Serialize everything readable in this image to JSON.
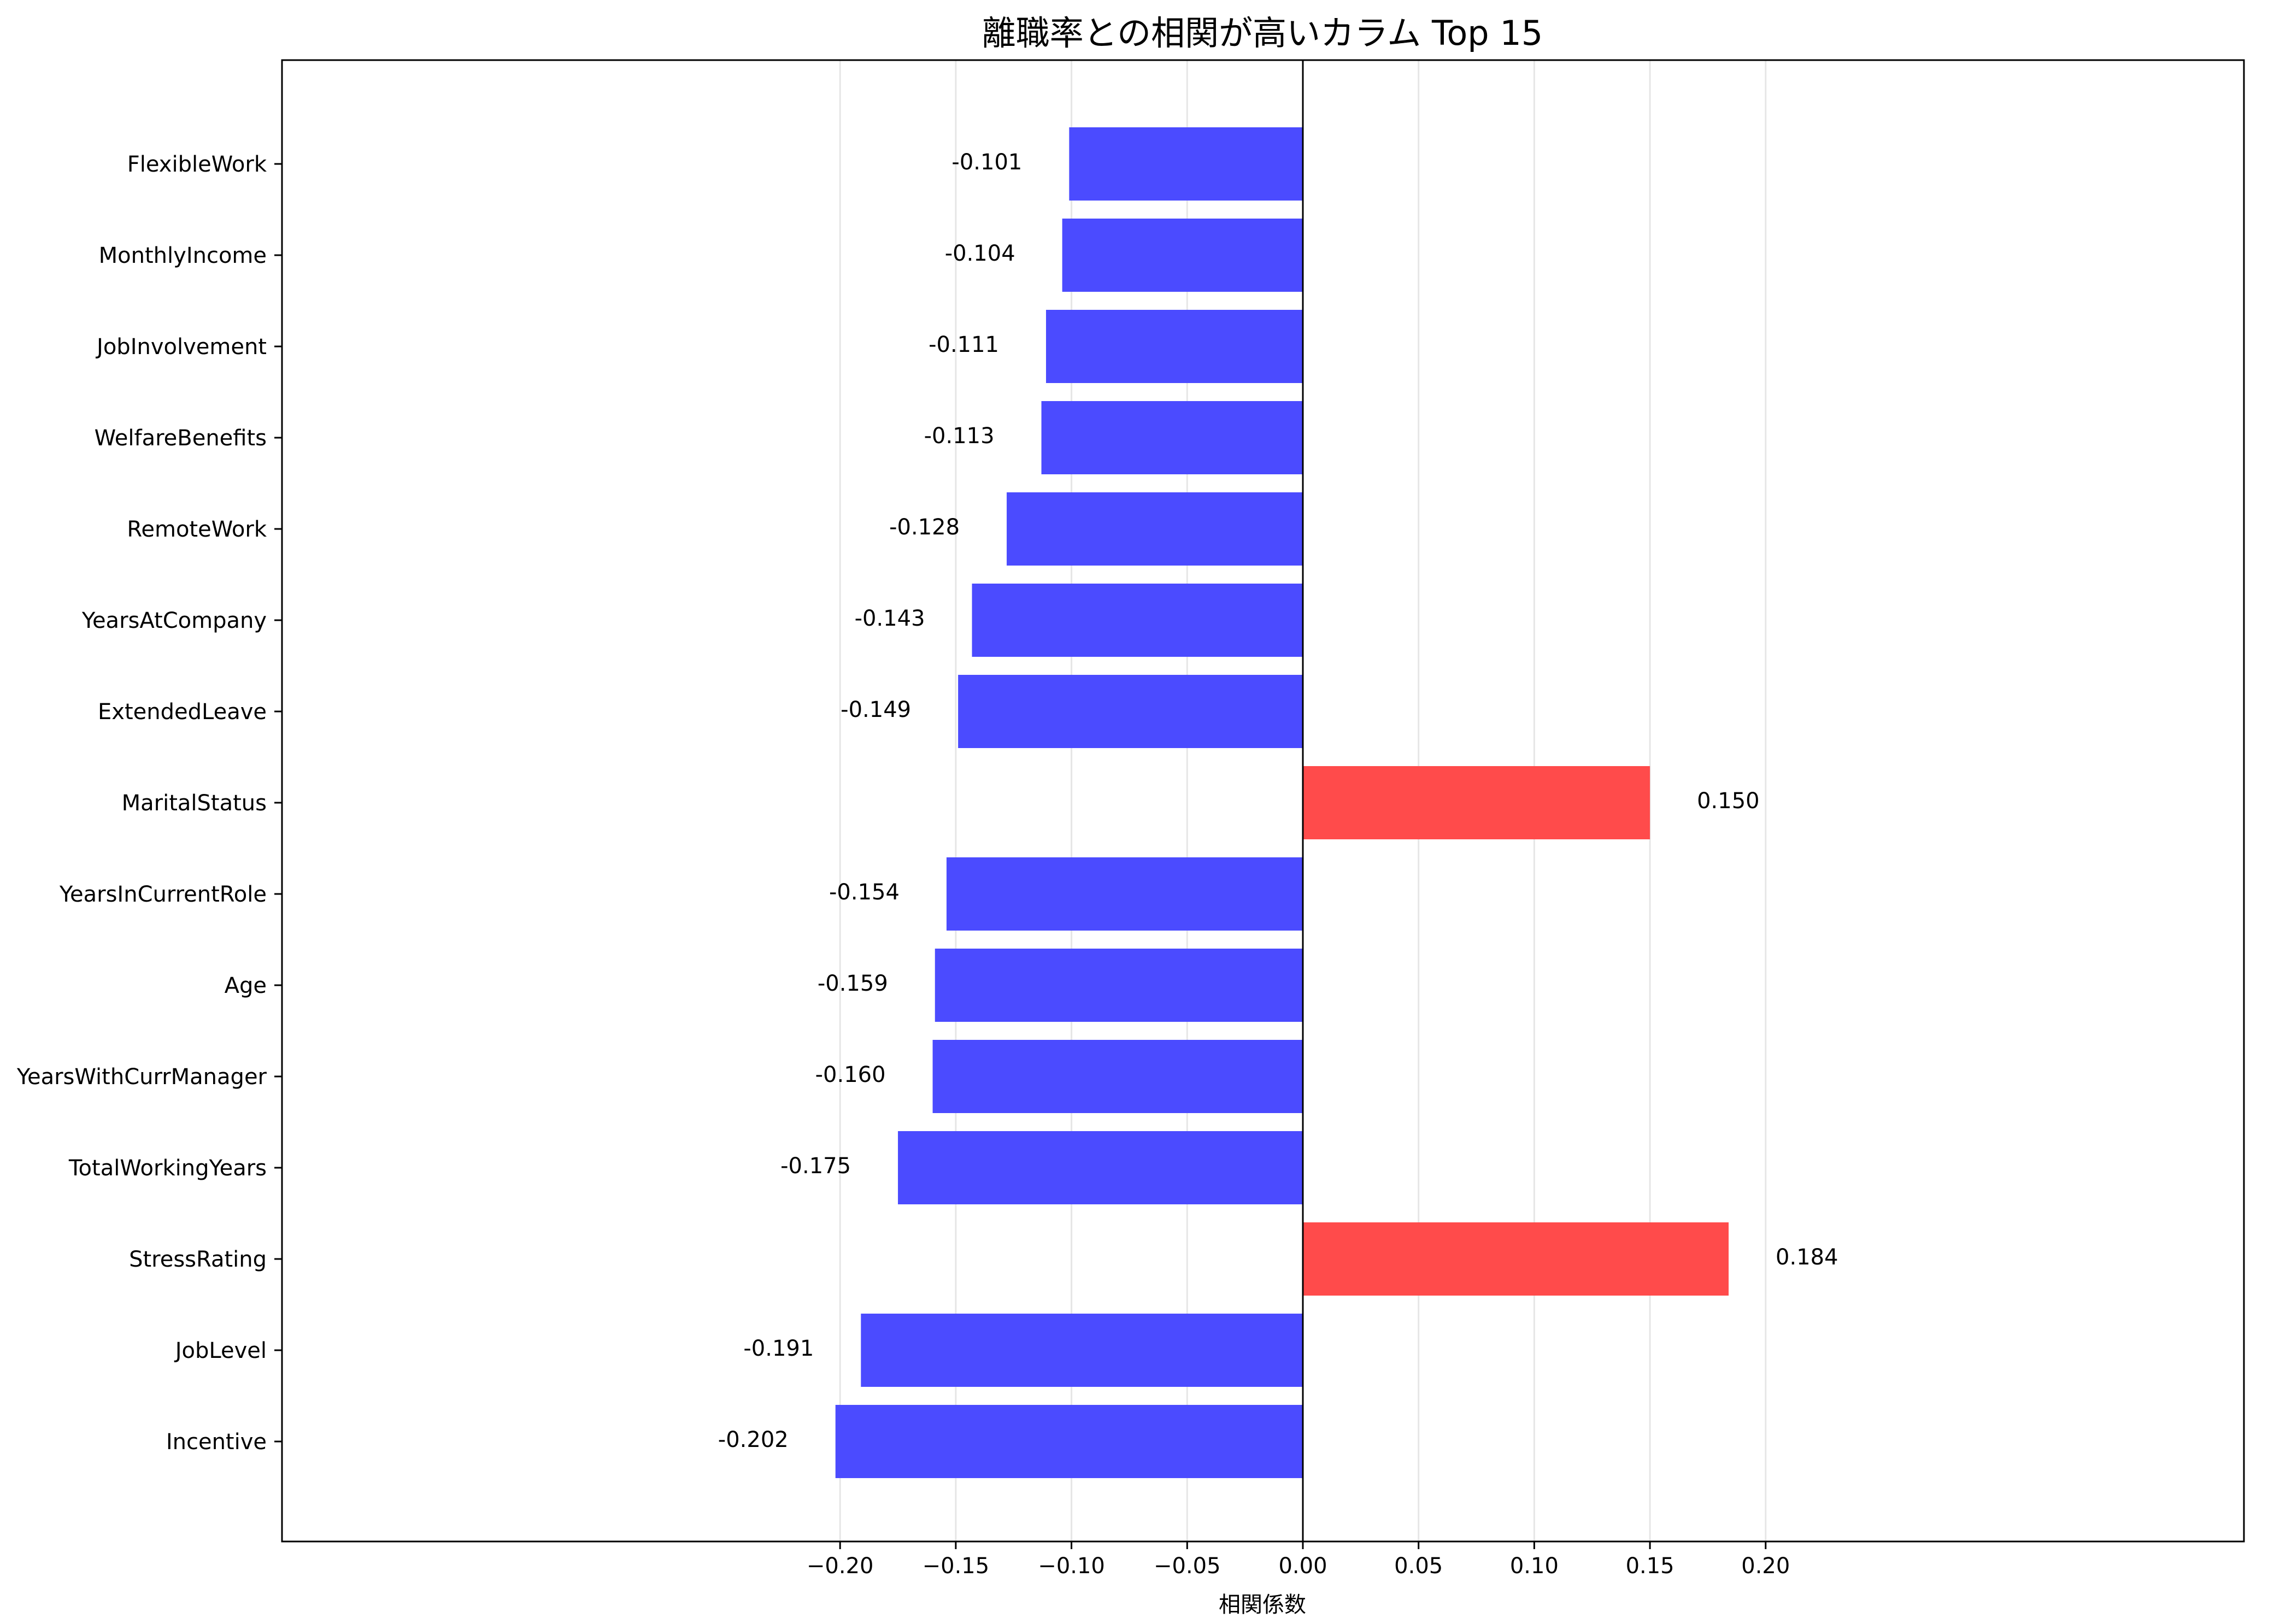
{
  "chart_data": {
    "type": "bar",
    "orientation": "horizontal",
    "title": "離職率との相関が高いカラム Top 15",
    "xlabel": "相関係数",
    "ylabel": "",
    "xlim": [
      -0.221,
      0.2038
    ],
    "x_ticks": [
      -0.2,
      -0.15,
      -0.1,
      -0.05,
      0.0,
      0.05,
      0.1,
      0.15,
      0.2
    ],
    "x_tick_labels": [
      "−0.20",
      "−0.15",
      "−0.10",
      "−0.05",
      "0.00",
      "0.05",
      "0.10",
      "0.15",
      "0.20"
    ],
    "grid": "vertical",
    "categories": [
      "FlexibleWork",
      "MonthlyIncome",
      "JobInvolvement",
      "WelfareBenefits",
      "RemoteWork",
      "YearsAtCompany",
      "ExtendedLeave",
      "MaritalStatus",
      "YearsInCurrentRole",
      "Age",
      "YearsWithCurrManager",
      "TotalWorkingYears",
      "StressRating",
      "JobLevel",
      "Incentive"
    ],
    "values": [
      -0.101,
      -0.104,
      -0.111,
      -0.113,
      -0.128,
      -0.143,
      -0.149,
      0.15,
      -0.154,
      -0.159,
      -0.16,
      -0.175,
      0.184,
      -0.191,
      -0.202
    ],
    "value_labels": [
      "-0.101",
      "-0.104",
      "-0.111",
      "-0.113",
      "-0.128",
      "-0.143",
      "-0.149",
      "0.150",
      "-0.154",
      "-0.159",
      "-0.160",
      "-0.175",
      "0.184",
      "-0.191",
      "-0.202"
    ],
    "colors": {
      "negative": "#4b4bff",
      "positive": "#ff4b4b",
      "grid": "#e6e6e6",
      "axis": "#000000"
    }
  }
}
